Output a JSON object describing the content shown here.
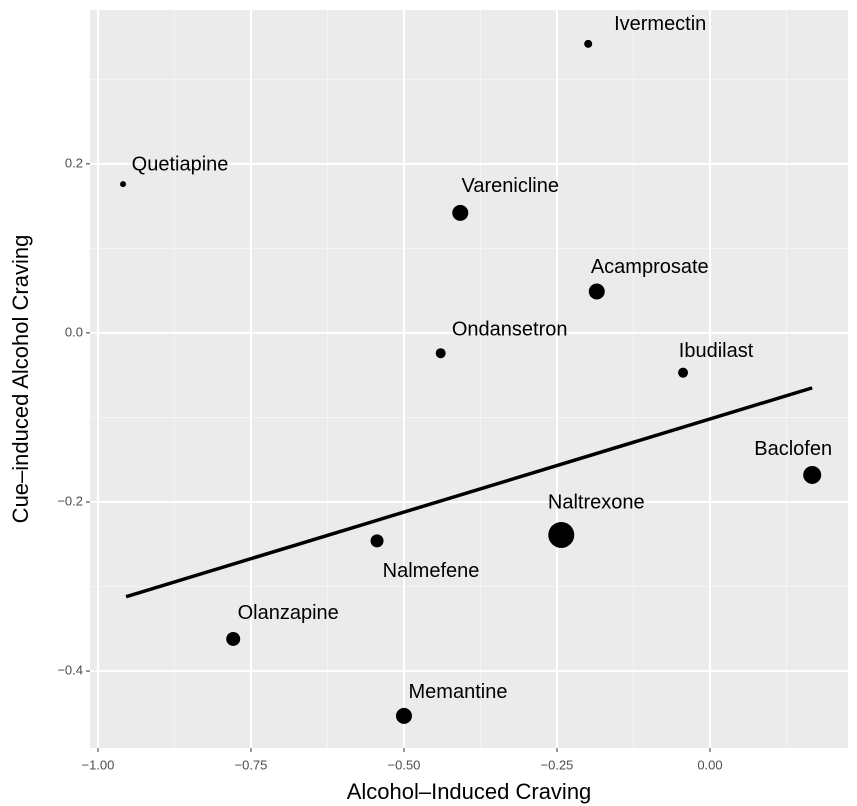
{
  "chart_data": {
    "type": "scatter",
    "x_label": "Alcohol–Induced Craving",
    "y_label": "Cue–induced Alcohol Craving",
    "categories": [
      "Ivermectin",
      "Quetiapine",
      "Varenicline",
      "Acamprosate",
      "Ondansetron",
      "Ibudilast",
      "Baclofen",
      "Naltrexone",
      "Nalmefene",
      "Olanzapine",
      "Memantine"
    ],
    "x": [
      -0.199,
      -0.959,
      -0.408,
      -0.185,
      -0.44,
      -0.044,
      0.167,
      -0.243,
      -0.544,
      -0.779,
      -0.5
    ],
    "values": [
      0.342,
      0.176,
      0.142,
      0.049,
      -0.024,
      -0.047,
      -0.168,
      -0.239,
      -0.246,
      -0.362,
      -0.453
    ],
    "sizes": [
      4,
      3,
      8,
      8,
      5,
      5,
      9,
      13,
      6.5,
      7,
      8
    ],
    "color": "#000000",
    "trend_line": {
      "x": [
        -0.954,
        0.167
      ],
      "y": [
        -0.312,
        -0.065
      ]
    },
    "xlim": [
      -1.013,
      0.2255
    ],
    "ylim": [
      -0.491,
      0.382
    ],
    "xticks": [
      {
        "value": -1,
        "label": "−1.00"
      },
      {
        "value": -0.75,
        "label": "−0.75"
      },
      {
        "value": -0.5,
        "label": "−0.50"
      },
      {
        "value": -0.25,
        "label": "−0.25"
      },
      {
        "value": 0,
        "label": "0.00"
      }
    ],
    "yticks": [
      {
        "value": -0.4,
        "label": "−0.4"
      },
      {
        "value": -0.2,
        "label": "−0.2"
      },
      {
        "value": 0,
        "label": "0.0"
      },
      0.2
    ],
    "grid": true
  }
}
